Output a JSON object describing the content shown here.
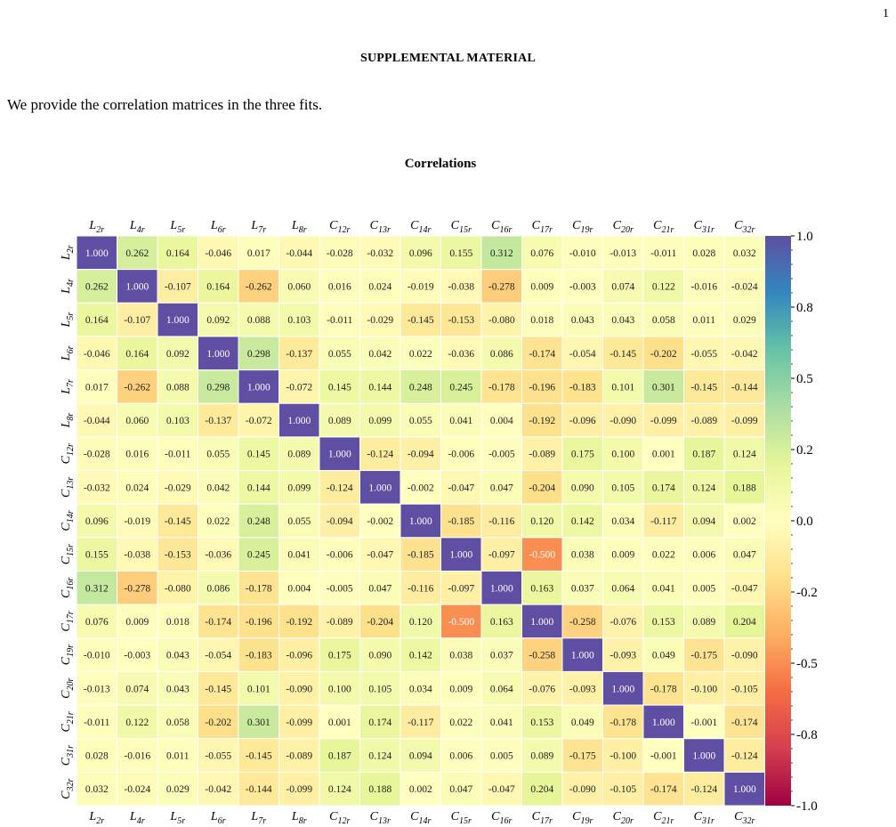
{
  "page": {
    "number": "1",
    "section_title": "SUPPLEMENTAL MATERIAL",
    "intro_text": "We provide the correlation matrices in the three fits."
  },
  "chart_data": {
    "type": "heatmap",
    "title": "Correlations",
    "labels": [
      {
        "base": "L",
        "sub": "2r"
      },
      {
        "base": "L",
        "sub": "4r"
      },
      {
        "base": "L",
        "sub": "5r"
      },
      {
        "base": "L",
        "sub": "6r"
      },
      {
        "base": "L",
        "sub": "7r"
      },
      {
        "base": "L",
        "sub": "8r"
      },
      {
        "base": "C",
        "sub": "12r"
      },
      {
        "base": "C",
        "sub": "13r"
      },
      {
        "base": "C",
        "sub": "14r"
      },
      {
        "base": "C",
        "sub": "15r"
      },
      {
        "base": "C",
        "sub": "16r"
      },
      {
        "base": "C",
        "sub": "17r"
      },
      {
        "base": "C",
        "sub": "19r"
      },
      {
        "base": "C",
        "sub": "20r"
      },
      {
        "base": "C",
        "sub": "21r"
      },
      {
        "base": "C",
        "sub": "31r"
      },
      {
        "base": "C",
        "sub": "32r"
      }
    ],
    "matrix": [
      [
        "1.000",
        "0.262",
        "0.164",
        "-0.046",
        "0.017",
        "-0.044",
        "-0.028",
        "-0.032",
        "0.096",
        "0.155",
        "0.312",
        "0.076",
        "-0.010",
        "-0.013",
        "-0.011",
        "0.028",
        "0.032"
      ],
      [
        "0.262",
        "1.000",
        "-0.107",
        "0.164",
        "-0.262",
        "0.060",
        "0.016",
        "0.024",
        "-0.019",
        "-0.038",
        "-0.278",
        "0.009",
        "-0.003",
        "0.074",
        "0.122",
        "-0.016",
        "-0.024"
      ],
      [
        "0.164",
        "-0.107",
        "1.000",
        "0.092",
        "0.088",
        "0.103",
        "-0.011",
        "-0.029",
        "-0.145",
        "-0.153",
        "-0.080",
        "0.018",
        "0.043",
        "0.043",
        "0.058",
        "0.011",
        "0.029"
      ],
      [
        "-0.046",
        "0.164",
        "0.092",
        "1.000",
        "0.298",
        "-0.137",
        "0.055",
        "0.042",
        "0.022",
        "-0.036",
        "0.086",
        "-0.174",
        "-0.054",
        "-0.145",
        "-0.202",
        "-0.055",
        "-0.042"
      ],
      [
        "0.017",
        "-0.262",
        "0.088",
        "0.298",
        "1.000",
        "-0.072",
        "0.145",
        "0.144",
        "0.248",
        "0.245",
        "-0.178",
        "-0.196",
        "-0.183",
        "0.101",
        "0.301",
        "-0.145",
        "-0.144"
      ],
      [
        "-0.044",
        "0.060",
        "0.103",
        "-0.137",
        "-0.072",
        "1.000",
        "0.089",
        "0.099",
        "0.055",
        "0.041",
        "0.004",
        "-0.192",
        "-0.096",
        "-0.090",
        "-0.099",
        "-0.089",
        "-0.099"
      ],
      [
        "-0.028",
        "0.016",
        "-0.011",
        "0.055",
        "0.145",
        "0.089",
        "1.000",
        "-0.124",
        "-0.094",
        "-0.006",
        "-0.005",
        "-0.089",
        "0.175",
        "0.100",
        "0.001",
        "0.187",
        "0.124"
      ],
      [
        "-0.032",
        "0.024",
        "-0.029",
        "0.042",
        "0.144",
        "0.099",
        "-0.124",
        "1.000",
        "-0.002",
        "-0.047",
        "0.047",
        "-0.204",
        "0.090",
        "0.105",
        "0.174",
        "0.124",
        "0.188"
      ],
      [
        "0.096",
        "-0.019",
        "-0.145",
        "0.022",
        "0.248",
        "0.055",
        "-0.094",
        "-0.002",
        "1.000",
        "-0.185",
        "-0.116",
        "0.120",
        "0.142",
        "0.034",
        "-0.117",
        "0.094",
        "0.002"
      ],
      [
        "0.155",
        "-0.038",
        "-0.153",
        "-0.036",
        "0.245",
        "0.041",
        "-0.006",
        "-0.047",
        "-0.185",
        "1.000",
        "-0.097",
        "-0.500",
        "0.038",
        "0.009",
        "0.022",
        "0.006",
        "0.047"
      ],
      [
        "0.312",
        "-0.278",
        "-0.080",
        "0.086",
        "-0.178",
        "0.004",
        "-0.005",
        "0.047",
        "-0.116",
        "-0.097",
        "1.000",
        "0.163",
        "0.037",
        "0.064",
        "0.041",
        "0.005",
        "-0.047"
      ],
      [
        "0.076",
        "0.009",
        "0.018",
        "-0.174",
        "-0.196",
        "-0.192",
        "-0.089",
        "-0.204",
        "0.120",
        "-0.500",
        "0.163",
        "1.000",
        "-0.258",
        "-0.076",
        "0.153",
        "0.089",
        "0.204"
      ],
      [
        "-0.010",
        "-0.003",
        "0.043",
        "-0.054",
        "-0.183",
        "-0.096",
        "0.175",
        "0.090",
        "0.142",
        "0.038",
        "0.037",
        "-0.258",
        "1.000",
        "-0.093",
        "0.049",
        "-0.175",
        "-0.090"
      ],
      [
        "-0.013",
        "0.074",
        "0.043",
        "-0.145",
        "0.101",
        "-0.090",
        "0.100",
        "0.105",
        "0.034",
        "0.009",
        "0.064",
        "-0.076",
        "-0.093",
        "1.000",
        "-0.178",
        "-0.100",
        "-0.105"
      ],
      [
        "-0.011",
        "0.122",
        "0.058",
        "-0.202",
        "0.301",
        "-0.099",
        "0.001",
        "0.174",
        "-0.117",
        "0.022",
        "0.041",
        "0.153",
        "0.049",
        "-0.178",
        "1.000",
        "-0.001",
        "-0.174"
      ],
      [
        "0.028",
        "-0.016",
        "0.011",
        "-0.055",
        "-0.145",
        "-0.089",
        "0.187",
        "0.124",
        "0.094",
        "0.006",
        "0.005",
        "0.089",
        "-0.175",
        "-0.100",
        "-0.001",
        "1.000",
        "-0.124"
      ],
      [
        "0.032",
        "-0.024",
        "0.029",
        "-0.042",
        "-0.144",
        "-0.099",
        "0.124",
        "0.188",
        "0.002",
        "0.047",
        "-0.047",
        "0.204",
        "-0.090",
        "-0.105",
        "-0.174",
        "-0.124",
        "1.000"
      ]
    ],
    "colorbar": {
      "colormap": "Spectral",
      "range": [
        -1.0,
        1.0
      ],
      "tick_labels": [
        "1.0",
        "0.8",
        "0.5",
        "0.2",
        "0.0",
        "-0.2",
        "-0.5",
        "-0.8",
        "-1.0"
      ]
    }
  }
}
